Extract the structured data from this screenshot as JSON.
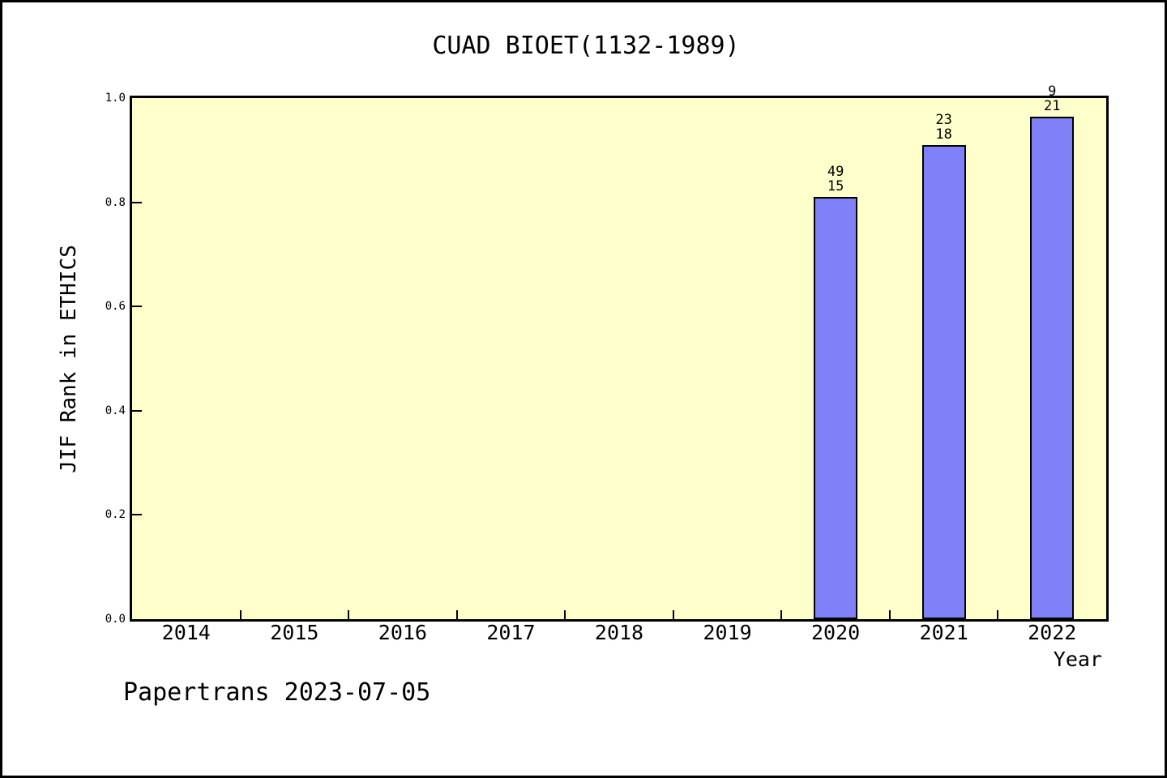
{
  "header": {
    "title": "CUAD BIOET(1132-1989)"
  },
  "footer": {
    "text": "Papertrans 2023-07-05"
  },
  "colors": {
    "page_background": "#ffffff",
    "plot_background": "#ffffcc",
    "bar_fill": "#8080f8",
    "bar_border": "#000000",
    "frame": "#000000",
    "text": "#000000"
  },
  "chart_data": {
    "type": "bar",
    "title": "CUAD BIOET(1132-1989)",
    "xlabel": "Year",
    "ylabel": "JIF Rank in ETHICS",
    "categories": [
      "2014",
      "2015",
      "2016",
      "2017",
      "2018",
      "2019",
      "2020",
      "2021",
      "2022"
    ],
    "values": [
      null,
      null,
      null,
      null,
      null,
      null,
      0.81,
      0.91,
      0.965
    ],
    "bar_labels": [
      null,
      null,
      null,
      null,
      null,
      null,
      [
        "49",
        "15"
      ],
      [
        "23",
        "18"
      ],
      [
        "9",
        "21"
      ]
    ],
    "ylim": [
      0.0,
      1.0
    ],
    "yticks": [
      "0.0",
      "0.2",
      "0.4",
      "0.6",
      "0.8",
      "1.0"
    ],
    "grid": "off",
    "legend": "none"
  }
}
